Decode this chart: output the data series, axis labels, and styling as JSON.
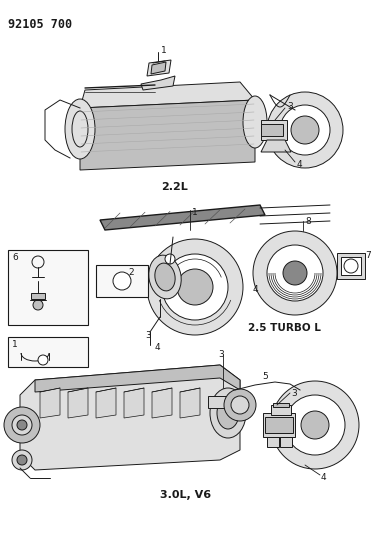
{
  "bg_color": "#ffffff",
  "line_color": "#1a1a1a",
  "figsize": [
    3.72,
    5.33
  ],
  "dpi": 100,
  "header": "92105 700",
  "label_22L": "2.2L",
  "label_25T": "2.5 TURBO L",
  "label_30V6": "3.0L, V6",
  "gray_light": "#e0e0e0",
  "gray_mid": "#c0c0c0",
  "gray_dark": "#888888",
  "gray_fill": "#d8d8d8"
}
